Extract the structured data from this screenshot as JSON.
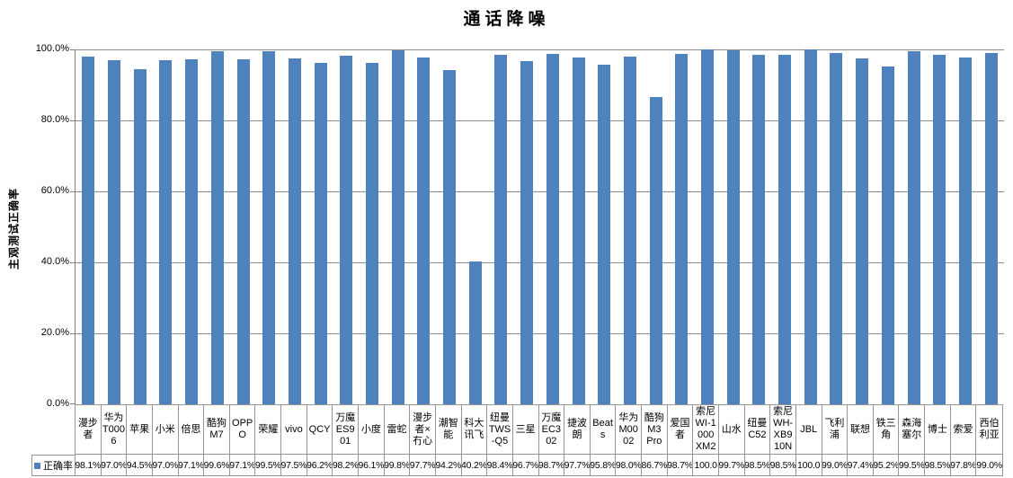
{
  "chart_data": {
    "type": "bar",
    "title": "通话降噪",
    "ylabel": "主观测试正确率",
    "legend_label": "正确率",
    "legend_position": "bottom-left",
    "bar_color": "#4F81BD",
    "gridline_color": "#8c8c8c",
    "grid": true,
    "ylim_percent": [
      0,
      100
    ],
    "y_ticks": [
      "100.0%",
      "80.0%",
      "60.0%",
      "40.0%",
      "20.0%",
      "0.0%"
    ],
    "categories": [
      "漫步者",
      "华为T0006",
      "苹果",
      "小米",
      "倍思",
      "酷狗M7",
      "OPPO",
      "荣耀",
      "vivo",
      "QCY",
      "万魔ES901",
      "小度",
      "雷蛇",
      "漫步者×冇心",
      "潮智能",
      "科大讯飞",
      "纽曼TWS-Q5",
      "三星",
      "万魔EC302",
      "捷波朗",
      "Beats",
      "华为M0002",
      "酷狗M3 Pro",
      "爱国者",
      "索尼WI-1000XM2",
      "山水",
      "纽曼C52",
      "索尼WH-XB910N",
      "JBL",
      "飞利浦",
      "联想",
      "铁三角",
      "森海塞尔",
      "博士",
      "索爱",
      "西伯利亚"
    ],
    "values": [
      98.1,
      97.0,
      94.5,
      97.0,
      97.1,
      99.6,
      97.1,
      99.5,
      97.5,
      96.2,
      98.2,
      96.1,
      99.8,
      97.7,
      94.2,
      40.2,
      98.4,
      96.7,
      98.7,
      97.7,
      95.8,
      98.0,
      86.7,
      98.7,
      100.0,
      99.7,
      98.5,
      98.5,
      100.0,
      99.0,
      97.4,
      95.2,
      99.5,
      98.5,
      97.8,
      99.0
    ],
    "value_labels": [
      "98.1%",
      "97.0%",
      "94.5%",
      "97.0%",
      "97.1%",
      "99.6%",
      "97.1%",
      "99.5%",
      "97.5%",
      "96.2%",
      "98.2%",
      "96.1%",
      "99.8%",
      "97.7%",
      "94.2%",
      "40.2%",
      "98.4%",
      "96.7%",
      "98.7%",
      "97.7%",
      "95.8%",
      "98.0%",
      "86.7%",
      "98.7%",
      "100.0",
      "99.7%",
      "98.5%",
      "98.5%",
      "100.0",
      "99.0%",
      "97.4%",
      "95.2%",
      "99.5%",
      "98.5%",
      "97.8%",
      "99.0%"
    ]
  }
}
